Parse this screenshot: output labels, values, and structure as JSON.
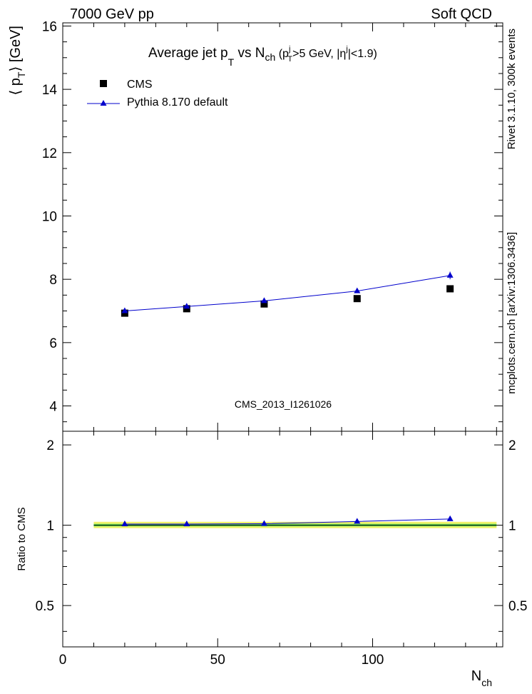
{
  "header": {
    "left": "7000 GeV pp",
    "right": "Soft QCD"
  },
  "side_text": {
    "rivet": "Rivet 3.1.10,  300k events",
    "mcplots": "mcplots.cern.ch [arXiv:1306.3436]"
  },
  "title": {
    "main": "Average jet p",
    "sub_T": "T",
    "vs": " vs N",
    "sub_ch": "ch",
    "cut_open": " (p",
    "cut_sup_j": "j",
    "cut_sub_T": "T",
    "cut_text": ">5 GeV, |η",
    "cut_sup_j2": "j",
    "cut_close": "|<1.9)"
  },
  "watermark": "CMS_2013_I1261026",
  "legend": {
    "cms": "CMS",
    "pythia": "Pythia 8.170 default"
  },
  "axes": {
    "ylabel_main": "⟨ p",
    "ylabel_sub": "T",
    "ylabel_close": "⟩ [GeV]",
    "ylabel_ratio": "Ratio to CMS",
    "xlabel": "N",
    "xlabel_sub": "ch"
  },
  "colors": {
    "mc": "#0000cc",
    "band_yellow": "#f2f26b",
    "band_green": "#66dd55",
    "data": "#000000"
  },
  "chart_data": [
    {
      "type": "scatter",
      "panel": "main",
      "x_range": [
        0,
        142
      ],
      "ylim": [
        3.2,
        16.1
      ],
      "y_ticks": [
        4,
        6,
        8,
        10,
        12,
        14,
        16
      ],
      "series": [
        {
          "name": "CMS",
          "marker": "square",
          "x": [
            20,
            40,
            65,
            95,
            125
          ],
          "y": [
            6.93,
            7.07,
            7.22,
            7.39,
            7.7
          ]
        },
        {
          "name": "Pythia 8.170 default",
          "marker": "triangle",
          "x": [
            20,
            40,
            65,
            95,
            125
          ],
          "y": [
            7.0,
            7.14,
            7.32,
            7.63,
            8.12
          ],
          "yerr": [
            0.04,
            0.04,
            0.04,
            0.05,
            0.12
          ]
        }
      ]
    },
    {
      "type": "line",
      "panel": "ratio",
      "x_range": [
        0,
        142
      ],
      "ylim": [
        0.35,
        2.25
      ],
      "y_ticks": [
        0.5,
        1,
        2
      ],
      "xticks": [
        0,
        50,
        100
      ],
      "series": [
        {
          "name": "CMS",
          "x": [
            10,
            140
          ],
          "y": [
            1.0,
            1.0
          ]
        },
        {
          "name": "Pythia 8.170 default",
          "x": [
            20,
            40,
            65,
            95,
            125
          ],
          "y": [
            1.01,
            1.01,
            1.013,
            1.033,
            1.055
          ]
        }
      ]
    }
  ]
}
